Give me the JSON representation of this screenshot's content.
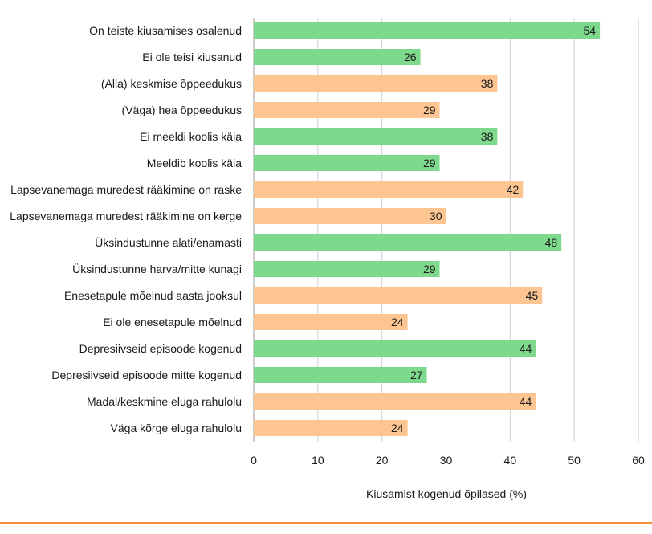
{
  "chart_data": {
    "type": "bar",
    "orientation": "horizontal",
    "title": "",
    "xlabel": "Kiusamist kogenud õpilased (%)",
    "ylabel": "",
    "xlim": [
      0,
      60
    ],
    "xticks": [
      0,
      10,
      20,
      30,
      40,
      50,
      60
    ],
    "grid": true,
    "colors": {
      "green": "#7fd98d",
      "orange": "#fdc591"
    },
    "categories": [
      "On teiste kiusamises osalenud",
      "Ei ole teisi kiusanud",
      "(Alla) keskmise õppeedukus",
      "(Väga) hea õppeedukus",
      "Ei meeldi koolis käia",
      "Meeldib koolis käia",
      "Lapsevanemaga muredest rääkimine on raske",
      "Lapsevanemaga muredest rääkimine on kerge",
      "Üksindustunne alati/enamasti",
      "Üksindustunne harva/mitte kunagi",
      "Enesetapule mõelnud aasta jooksul",
      "Ei ole enesetapule mõelnud",
      "Depresiivseid episoode kogenud",
      "Depresiivseid episoode mitte kogenud",
      "Madal/keskmine eluga rahulolu",
      "Väga kõrge eluga rahulolu"
    ],
    "values": [
      54,
      26,
      38,
      29,
      38,
      29,
      42,
      30,
      48,
      29,
      45,
      24,
      44,
      27,
      44,
      24
    ],
    "bar_colors": [
      "green",
      "green",
      "orange",
      "orange",
      "green",
      "green",
      "orange",
      "orange",
      "green",
      "green",
      "orange",
      "orange",
      "green",
      "green",
      "orange",
      "orange"
    ]
  }
}
